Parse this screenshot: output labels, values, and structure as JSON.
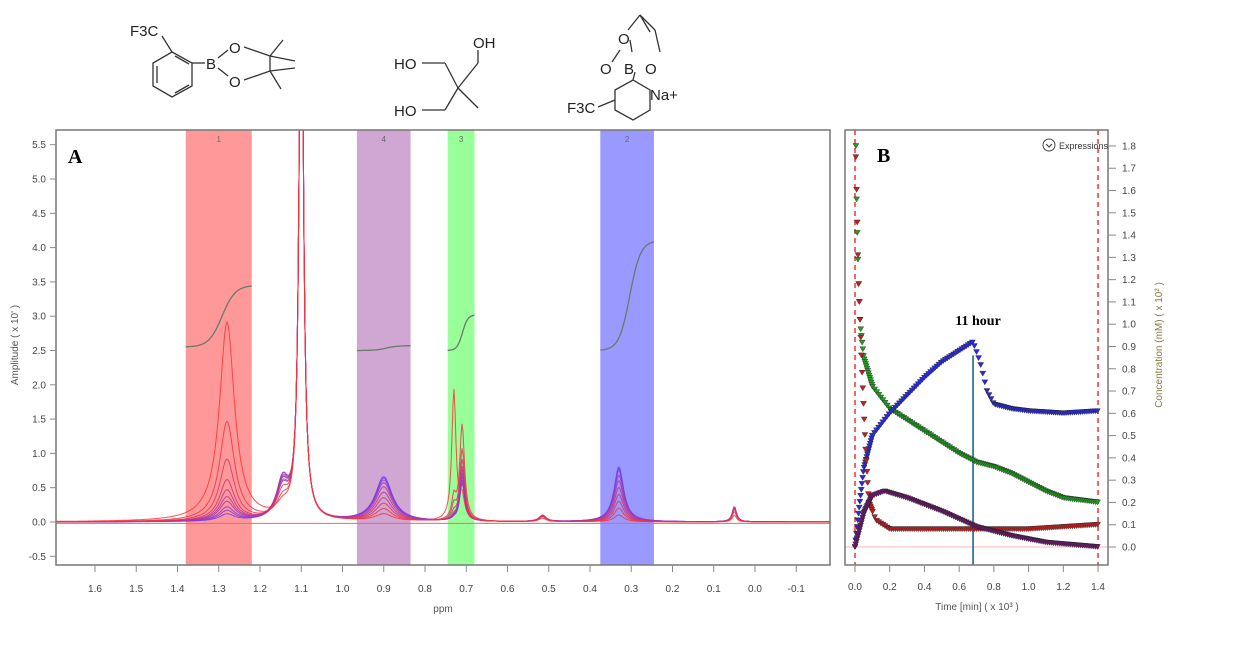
{
  "structures": [
    {
      "labels": [
        "F3C",
        "B",
        "O",
        "O"
      ]
    },
    {
      "labels": [
        "OH",
        "HO",
        "HO"
      ]
    },
    {
      "labels": [
        "O",
        "O",
        "B",
        "O",
        "Na+",
        "F3C"
      ]
    }
  ],
  "chart_data": [
    {
      "type": "line",
      "panel_label": "A",
      "xlabel": "ppm",
      "ylabel": "Amplitude ( x 10' )",
      "xlim": [
        1.7,
        -0.17
      ],
      "ylim": [
        -0.6,
        5.6
      ],
      "x_reversed": true,
      "xticks": [
        "1.6",
        "1.5",
        "1.4",
        "1.3",
        "1.2",
        "1.1",
        "1.0",
        "0.9",
        "0.8",
        "0.7",
        "0.6",
        "0.5",
        "0.4",
        "0.3",
        "0.2",
        "0.1",
        "0.0",
        "-0.1"
      ],
      "yticks": [
        "5.5",
        "5.0",
        "4.5",
        "4.0",
        "3.5",
        "3.0",
        "2.5",
        "2.0",
        "1.5",
        "1.0",
        "0.5",
        "0.0",
        "-0.5"
      ],
      "regions": [
        {
          "label": "1",
          "from": 1.38,
          "to": 1.22,
          "color": "#ff7f7f",
          "integral": [
            2.55,
            3.45
          ]
        },
        {
          "label": "4",
          "from": 0.965,
          "to": 0.835,
          "color": "#c490c8",
          "integral": [
            2.5,
            2.57
          ]
        },
        {
          "label": "3",
          "from": 0.745,
          "to": 0.68,
          "color": "#80ff80",
          "integral": [
            2.5,
            3.02
          ]
        },
        {
          "label": "2",
          "from": 0.375,
          "to": 0.245,
          "color": "#8080ff",
          "integral": [
            2.5,
            4.1
          ]
        }
      ],
      "peaks": [
        {
          "ppm": 1.28,
          "width": 0.022,
          "heights": [
            2.9,
            1.45,
            0.9,
            0.6,
            0.45,
            0.35,
            0.28,
            0.2,
            0.15,
            0.1
          ]
        },
        {
          "ppm": 1.145,
          "width": 0.018,
          "heights": [
            0.15,
            0.25,
            0.35,
            0.42,
            0.48,
            0.52,
            0.55,
            0.55,
            0.5,
            0.45
          ]
        },
        {
          "ppm": 1.1,
          "width": 0.006,
          "heights": [
            9,
            9,
            9,
            9,
            9,
            9,
            9,
            9,
            9,
            9
          ]
        },
        {
          "ppm": 0.9,
          "width": 0.025,
          "heights": [
            0.1,
            0.18,
            0.26,
            0.34,
            0.42,
            0.5,
            0.56,
            0.6,
            0.63,
            0.65
          ]
        },
        {
          "ppm": 0.73,
          "width": 0.006,
          "heights": [
            1.9,
            0.3,
            0.2,
            0.1,
            0.05,
            0.03,
            0.02,
            0.02,
            0.02,
            0.02
          ]
        },
        {
          "ppm": 0.71,
          "width": 0.007,
          "heights": [
            0.3,
            1.4,
            1.05,
            0.9,
            0.8,
            0.75,
            0.7,
            0.65,
            0.6,
            0.55
          ]
        },
        {
          "ppm": 0.515,
          "width": 0.01,
          "heights": [
            0.05,
            0.07,
            0.08,
            0.08,
            0.09,
            0.09,
            0.09,
            0.09,
            0.09,
            0.09
          ]
        },
        {
          "ppm": 0.33,
          "width": 0.014,
          "heights": [
            0.1,
            0.2,
            0.3,
            0.4,
            0.5,
            0.6,
            0.68,
            0.75,
            0.78,
            0.8
          ]
        },
        {
          "ppm": 0.05,
          "width": 0.006,
          "heights": [
            0.1,
            0.15,
            0.18,
            0.2,
            0.21,
            0.22,
            0.22,
            0.22,
            0.22,
            0.22
          ]
        }
      ],
      "spectrum_colors": [
        "#ff3030",
        "#6a3cff"
      ],
      "grid": false
    },
    {
      "type": "scatter",
      "panel_label": "B",
      "xlabel": "Time [min] ( x 10³ )",
      "ylabel": "Concentration (mM) ( x 10² )",
      "xlim": [
        -0.04,
        1.45
      ],
      "ylim": [
        -0.12,
        1.86
      ],
      "xticks": [
        "0.0",
        "0.2",
        "0.4",
        "0.6",
        "0.8",
        "1.0",
        "1.2",
        "1.4"
      ],
      "yticks": [
        "1.8",
        "1.7",
        "1.6",
        "1.5",
        "1.4",
        "1.3",
        "1.2",
        "1.1",
        "1.0",
        "0.9",
        "0.8",
        "0.7",
        "0.6",
        "0.5",
        "0.4",
        "0.3",
        "0.2",
        "0.1",
        "0.0"
      ],
      "expressions_label": "Expressions",
      "annotation": {
        "text": "11 hour",
        "x": 0.68,
        "line_top": 0.86
      },
      "markers": [
        0.0,
        1.4
      ],
      "series": [
        {
          "color": "#1fa01f",
          "points": [
            [
              0.005,
              1.8
            ],
            [
              0.01,
              1.5
            ],
            [
              0.02,
              1.2
            ],
            [
              0.03,
              1.0
            ],
            [
              0.05,
              0.85
            ],
            [
              0.1,
              0.72
            ],
            [
              0.2,
              0.62
            ],
            [
              0.3,
              0.57
            ],
            [
              0.4,
              0.52
            ],
            [
              0.5,
              0.47
            ],
            [
              0.6,
              0.42
            ],
            [
              0.7,
              0.38
            ],
            [
              0.8,
              0.36
            ],
            [
              0.9,
              0.33
            ],
            [
              1.0,
              0.29
            ],
            [
              1.1,
              0.25
            ],
            [
              1.2,
              0.22
            ],
            [
              1.3,
              0.21
            ],
            [
              1.4,
              0.2
            ]
          ]
        },
        {
          "color": "#2a2ad8",
          "points": [
            [
              0.0,
              0.0
            ],
            [
              0.02,
              0.15
            ],
            [
              0.05,
              0.35
            ],
            [
              0.1,
              0.5
            ],
            [
              0.2,
              0.6
            ],
            [
              0.3,
              0.68
            ],
            [
              0.4,
              0.76
            ],
            [
              0.5,
              0.83
            ],
            [
              0.6,
              0.88
            ],
            [
              0.68,
              0.92
            ],
            [
              0.72,
              0.83
            ],
            [
              0.76,
              0.7
            ],
            [
              0.8,
              0.64
            ],
            [
              0.9,
              0.62
            ],
            [
              1.0,
              0.61
            ],
            [
              1.2,
              0.6
            ],
            [
              1.4,
              0.61
            ]
          ]
        },
        {
          "color": "#c02020",
          "points": [
            [
              0.005,
              1.75
            ],
            [
              0.02,
              1.2
            ],
            [
              0.04,
              0.8
            ],
            [
              0.06,
              0.45
            ],
            [
              0.08,
              0.2
            ],
            [
              0.12,
              0.12
            ],
            [
              0.2,
              0.08
            ],
            [
              0.4,
              0.08
            ],
            [
              0.6,
              0.08
            ],
            [
              0.8,
              0.08
            ],
            [
              1.0,
              0.08
            ],
            [
              1.2,
              0.09
            ],
            [
              1.4,
              0.1
            ]
          ]
        },
        {
          "color": "#6a1a6a",
          "points": [
            [
              0.0,
              0.0
            ],
            [
              0.05,
              0.15
            ],
            [
              0.1,
              0.23
            ],
            [
              0.17,
              0.25
            ],
            [
              0.3,
              0.22
            ],
            [
              0.5,
              0.16
            ],
            [
              0.7,
              0.09
            ],
            [
              0.9,
              0.05
            ],
            [
              1.1,
              0.02
            ],
            [
              1.4,
              0.0
            ]
          ]
        }
      ],
      "grid": false
    }
  ]
}
